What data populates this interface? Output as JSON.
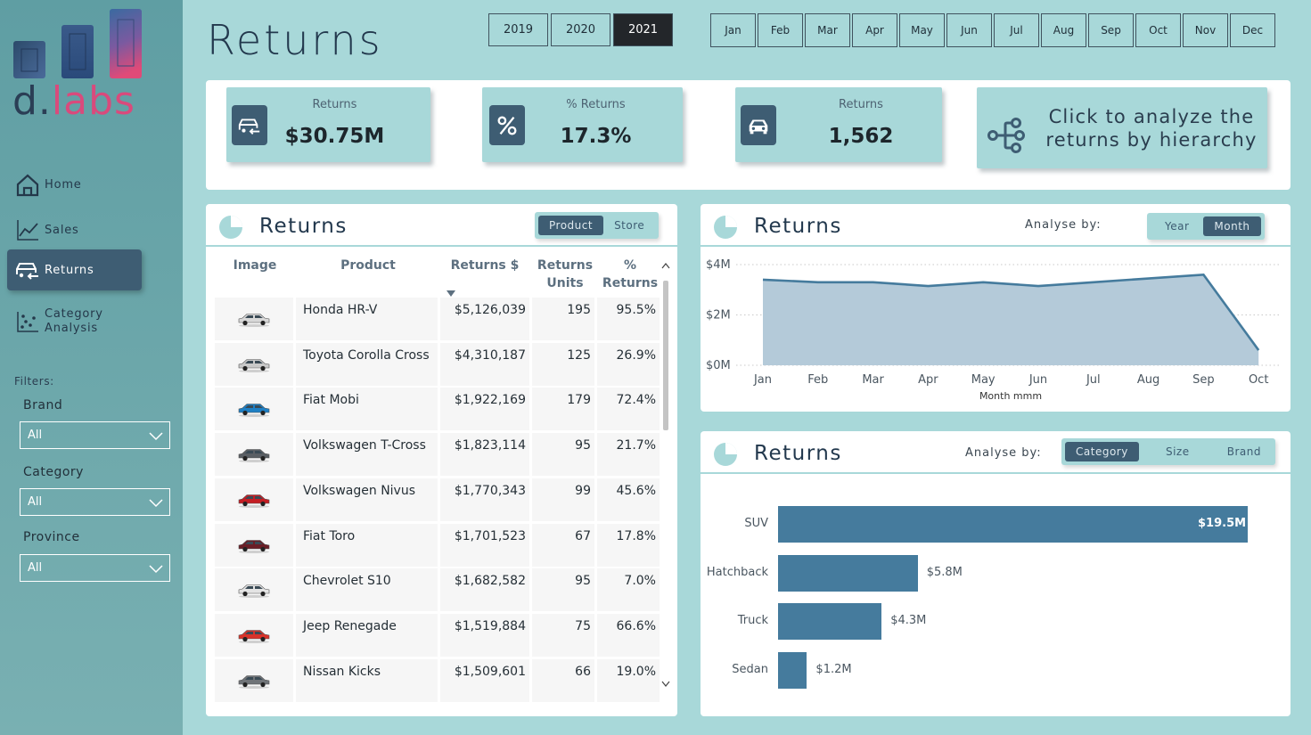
{
  "brand": {
    "logo_main": "d.",
    "logo_accent": "labs"
  },
  "nav": [
    {
      "label": "Home",
      "icon": "home-icon"
    },
    {
      "label": "Sales",
      "icon": "line-chart-icon"
    },
    {
      "label": "Returns",
      "icon": "car-return-icon",
      "active": true
    },
    {
      "label_line1": "Category",
      "label_line2": "Analysis",
      "icon": "scatter-icon"
    }
  ],
  "filters": {
    "heading": "Filters:",
    "items": [
      {
        "title": "Brand",
        "value": "All"
      },
      {
        "title": "Category",
        "value": "All"
      },
      {
        "title": "Province",
        "value": "All"
      }
    ]
  },
  "header": {
    "title": "Returns",
    "years": [
      "2019",
      "2020",
      "2021"
    ],
    "selected_year": "2021",
    "months": [
      "Jan",
      "Feb",
      "Mar",
      "Apr",
      "May",
      "Jun",
      "Jul",
      "Aug",
      "Sep",
      "Oct",
      "Nov",
      "Dec"
    ]
  },
  "kpis": [
    {
      "label": "Returns",
      "value": "$30.75M",
      "icon": "car-return-icon"
    },
    {
      "label": "% Returns",
      "value": "17.3%",
      "icon": "percent-icon"
    },
    {
      "label": "Returns",
      "value": "1,562",
      "icon": "car-icon"
    }
  ],
  "hierarchy_link": {
    "line1": "Click to analyze the",
    "line2": "returns by hierarchy",
    "icon": "hierarchy-icon"
  },
  "table_panel": {
    "title": "Returns",
    "toggle": [
      "Product",
      "Store"
    ],
    "toggle_active": "Product",
    "columns": [
      "Image",
      "Product",
      "Returns $",
      "Returns Units",
      "% Returns"
    ],
    "columns_split": {
      "units_1": "Returns",
      "units_2": "Units",
      "pct_1": "%",
      "pct_2": "Returns"
    },
    "rows": [
      {
        "product": "Honda HR-V",
        "revenue": "$5,126,039",
        "units": "195",
        "pct": "95.5%",
        "color": "#d8d8d8"
      },
      {
        "product": "Toyota Corolla Cross",
        "revenue": "$4,310,187",
        "units": "125",
        "pct": "26.9%",
        "color": "#c9c9c9"
      },
      {
        "product": "Fiat Mobi",
        "revenue": "$1,922,169",
        "units": "179",
        "pct": "72.4%",
        "color": "#1e7fc4"
      },
      {
        "product": "Volkswagen T-Cross",
        "revenue": "$1,823,114",
        "units": "95",
        "pct": "21.7%",
        "color": "#5a5f64"
      },
      {
        "product": "Volkswagen Nivus",
        "revenue": "$1,770,343",
        "units": "99",
        "pct": "45.6%",
        "color": "#c41e24"
      },
      {
        "product": "Fiat Toro",
        "revenue": "$1,701,523",
        "units": "67",
        "pct": "17.8%",
        "color": "#6a1e26"
      },
      {
        "product": "Chevrolet S10",
        "revenue": "$1,682,582",
        "units": "95",
        "pct": "7.0%",
        "color": "#e4e4e4"
      },
      {
        "product": "Jeep Renegade",
        "revenue": "$1,519,884",
        "units": "75",
        "pct": "66.6%",
        "color": "#d9332a"
      },
      {
        "product": "Nissan Kicks",
        "revenue": "$1,509,601",
        "units": "66",
        "pct": "19.0%",
        "color": "#707478"
      }
    ]
  },
  "line_panel": {
    "title": "Returns",
    "analyse_label": "Analyse by:",
    "toggle": [
      "Year",
      "Month"
    ],
    "toggle_active": "Month"
  },
  "bar_panel": {
    "title": "Returns",
    "analyse_label": "Analyse by:",
    "toggle": [
      "Category",
      "Size",
      "Brand"
    ],
    "toggle_active": "Category"
  },
  "chart_data": [
    {
      "type": "area",
      "title": "Returns",
      "xlabel": "Month mmm",
      "ylabel": "",
      "x": [
        "Jan",
        "Feb",
        "Mar",
        "Apr",
        "May",
        "Jun",
        "Jul",
        "Aug",
        "Sep",
        "Oct"
      ],
      "values": [
        3.4,
        3.3,
        3.3,
        3.15,
        3.3,
        3.15,
        3.3,
        3.45,
        3.6,
        0.6
      ],
      "yticks": [
        "$4M",
        "$2M",
        "$0M"
      ],
      "ylim": [
        0,
        4
      ],
      "grid": true,
      "colors": {
        "line": "#457b9d",
        "fill": "#b4cad9"
      }
    },
    {
      "type": "bar",
      "orientation": "horizontal",
      "title": "Returns",
      "categories": [
        "SUV",
        "Hatchback",
        "Truck",
        "Sedan"
      ],
      "values": [
        19.5,
        5.8,
        4.3,
        1.2
      ],
      "labels": [
        "$19.5M",
        "$5.8M",
        "$4.3M",
        "$1.2M"
      ],
      "unit": "$M",
      "colors": {
        "bar": "#457b9d"
      }
    }
  ]
}
